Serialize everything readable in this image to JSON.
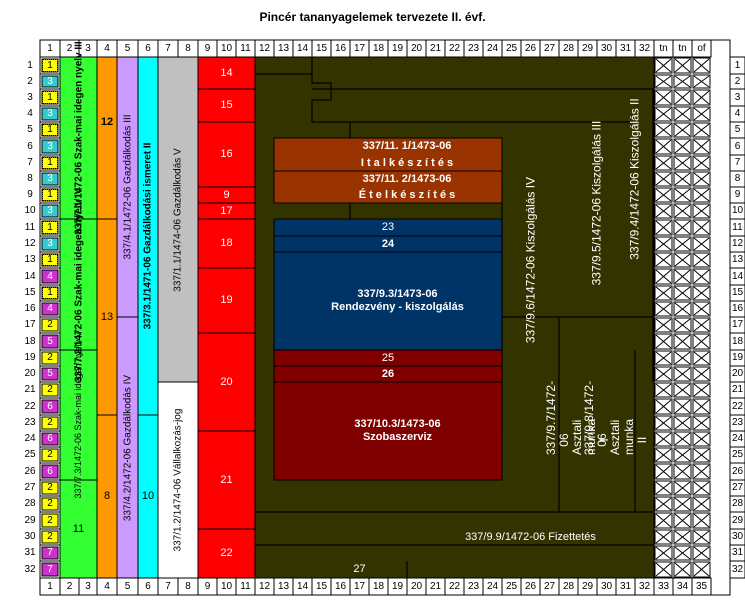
{
  "title": "Pincér tananyagelemek tervezete II. évf.",
  "columns": [
    "1",
    "2",
    "3",
    "4",
    "5",
    "6",
    "7",
    "8",
    "9",
    "10",
    "11",
    "12",
    "13",
    "14",
    "15",
    "16",
    "17",
    "18",
    "19",
    "20",
    "21",
    "22",
    "23",
    "24",
    "25",
    "26",
    "27",
    "28",
    "29",
    "30",
    "31",
    "32",
    "tn",
    "tn",
    "of"
  ],
  "bottom_columns": [
    "1",
    "2",
    "3",
    "4",
    "5",
    "6",
    "7",
    "8",
    "9",
    "10",
    "11",
    "12",
    "13",
    "14",
    "15",
    "16",
    "17",
    "18",
    "19",
    "20",
    "21",
    "22",
    "23",
    "24",
    "25",
    "26",
    "27",
    "28",
    "29",
    "30",
    "31",
    "32",
    "33",
    "34",
    "35"
  ],
  "rows": [
    "1",
    "2",
    "3",
    "4",
    "5",
    "6",
    "7",
    "8",
    "9",
    "10",
    "11",
    "12",
    "13",
    "14",
    "15",
    "16",
    "17",
    "18",
    "19",
    "20",
    "21",
    "22",
    "23",
    "24",
    "25",
    "26",
    "27",
    "28",
    "29",
    "30",
    "31",
    "32"
  ],
  "small_cells": [
    "1",
    "3",
    "1",
    "3",
    "1",
    "3",
    "1",
    "3",
    "1",
    "3",
    "1",
    "3",
    "1",
    "4",
    "1",
    "4",
    "2",
    "5",
    "2",
    "5",
    "2",
    "6",
    "2",
    "6",
    "2",
    "6",
    "2",
    "2",
    "2",
    "2",
    "7",
    "7"
  ],
  "colors": {
    "yellow": "#FFFF00",
    "blue": "#33CCCC",
    "magenta": "#CC33CC",
    "green": "#33FF33",
    "orange": "#FF9900",
    "lavender": "#CC99FF",
    "cyan": "#00FFFF",
    "grey": "#C0C0C0",
    "red": "#FF0000",
    "olive": "#333300",
    "brown": "#993300",
    "navy": "#003366",
    "darkred": "#800000"
  },
  "blocks": {
    "nyelv3": "337/7.1/1472-06 Szak-mai idegen nyelv III",
    "nyelv4": "337/7.2/1472-06 Szak-mai idegen nyelv IV",
    "nyelv5": "337/7.3/1472-06 Szak-mai idegen nyelv V",
    "n11": "11",
    "n12": "12",
    "n13": "13",
    "n8": "8",
    "gazd3": "337/4.1/1472-06 Gazdálkodás III",
    "gazd4": "337/4.2/1472-06 Gazdálkodás IV",
    "ismeret2": "337/3.1/1471-06 Gazdálkodási ismeret II",
    "n10": "10",
    "gazd5": "337/1.1/1474-06 Gazdálkodás V",
    "vallalkozas": "337/1.2/1474-06 Vállalkozás-jog",
    "red": [
      "14",
      "15",
      "16",
      "9",
      "17",
      "18",
      "19",
      "20",
      "21",
      "22"
    ],
    "ital_code": "337/11. 1/1473-06",
    "ital": "I t a l  k é s z í t é s",
    "etel_code": "337/11. 2/1473-06",
    "etel": "É t e l  k é s z í t é s",
    "n23": "23",
    "n24": "24",
    "rendezveny": "337/9.3/1473-06 Rendezvény - kiszolgálás",
    "n25": "25",
    "n26": "26",
    "szobaszerviz": "337/10.3/1473-06 Szobaszerviz",
    "kiszolgalas4": "337/9.6/1472-06 Kiszolgálás IV",
    "kiszolgalas3": "337/9.5/1472-06 Kiszolgálás III",
    "kiszolgalas2": "337/9.4/1472-06 Kiszolgálás II",
    "asztali1": "337/9.7/1472-06 Asztali munka I",
    "asztali2": "337/9.8/1472-06 Asztali munka II",
    "fizettetes": "337/9.9/1472-06 Fizettetés",
    "n27": "27"
  }
}
